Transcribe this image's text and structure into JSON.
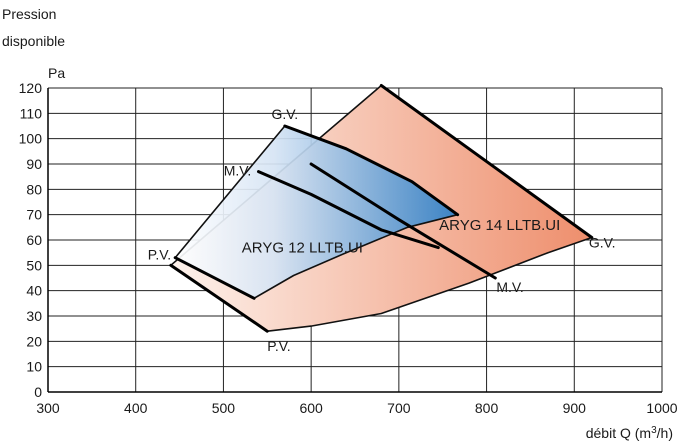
{
  "chart_data": {
    "type": "area",
    "ylabel_line1": "Pression",
    "ylabel_line2": "disponible",
    "ylabel_unit": "Pa",
    "xlabel_prefix": "débit Q (m",
    "xlabel_sup": "3",
    "xlabel_suffix": "/h)",
    "xlim": [
      300,
      1000
    ],
    "ylim": [
      0,
      120
    ],
    "x_ticks": [
      300,
      400,
      500,
      600,
      700,
      800,
      900,
      1000
    ],
    "y_ticks": [
      0,
      10,
      20,
      30,
      40,
      50,
      60,
      70,
      80,
      90,
      100,
      110,
      120
    ],
    "grid": true,
    "series": [
      {
        "name": "ARYG 14 LLTB.UI",
        "color": "#ee8e6c",
        "outline": [
          [
            440,
            50
          ],
          [
            680,
            121
          ],
          [
            920,
            61
          ],
          [
            870,
            55
          ],
          [
            780,
            43
          ],
          [
            680,
            31
          ],
          [
            600,
            26
          ],
          [
            550,
            24
          ]
        ],
        "curves": [
          {
            "label": "G.V.",
            "points": [
              [
                680,
                121
              ],
              [
                920,
                61
              ]
            ]
          },
          {
            "label": "M.V.",
            "points": [
              [
                600,
                90
              ],
              [
                700,
                68
              ],
              [
                810,
                45
              ]
            ]
          },
          {
            "label": "P.V.",
            "points": [
              [
                440,
                50
              ],
              [
                550,
                24
              ]
            ]
          }
        ]
      },
      {
        "name": "ARYG 12 LLTB.UI",
        "color": "#2c7fc8",
        "outline": [
          [
            445,
            53
          ],
          [
            570,
            105
          ],
          [
            640,
            96
          ],
          [
            715,
            83
          ],
          [
            767,
            70
          ],
          [
            710,
            65
          ],
          [
            640,
            55
          ],
          [
            580,
            46
          ],
          [
            535,
            37
          ]
        ],
        "curves": [
          {
            "label": "G.V.",
            "points": [
              [
                570,
                105
              ],
              [
                640,
                96
              ],
              [
                715,
                83
              ],
              [
                767,
                70
              ]
            ]
          },
          {
            "label": "M.V.",
            "points": [
              [
                540,
                87
              ],
              [
                600,
                78
              ],
              [
                680,
                64
              ],
              [
                745,
                57
              ]
            ]
          },
          {
            "label": "P.V.",
            "points": [
              [
                445,
                53
              ],
              [
                535,
                37
              ]
            ]
          }
        ]
      }
    ],
    "annotations": [
      {
        "text": "G.V.",
        "x": 570,
        "y": 105,
        "anchor": "middle",
        "dx": 0,
        "dy": -7
      },
      {
        "text": "M.V.",
        "x": 540,
        "y": 87,
        "anchor": "middle",
        "dx": -21,
        "dy": 4
      },
      {
        "text": "P.V.",
        "x": 445,
        "y": 53,
        "anchor": "end",
        "dx": -4,
        "dy": 2
      },
      {
        "text": "ARYG 12 LLTB.UI",
        "x": 590,
        "y": 55,
        "anchor": "middle",
        "dx": 0,
        "dy": 0,
        "zone": true
      },
      {
        "text": "ARYG 14 LLTB.UI",
        "x": 815,
        "y": 64,
        "anchor": "middle",
        "dx": 0,
        "dy": 0,
        "zone": true
      },
      {
        "text": "G.V.",
        "x": 920,
        "y": 61,
        "anchor": "start",
        "dx": -3,
        "dy": 10
      },
      {
        "text": "M.V.",
        "x": 810,
        "y": 45,
        "anchor": "start",
        "dx": 1,
        "dy": 14
      },
      {
        "text": "P.V.",
        "x": 550,
        "y": 24,
        "anchor": "start",
        "dx": 0,
        "dy": 20
      }
    ]
  }
}
